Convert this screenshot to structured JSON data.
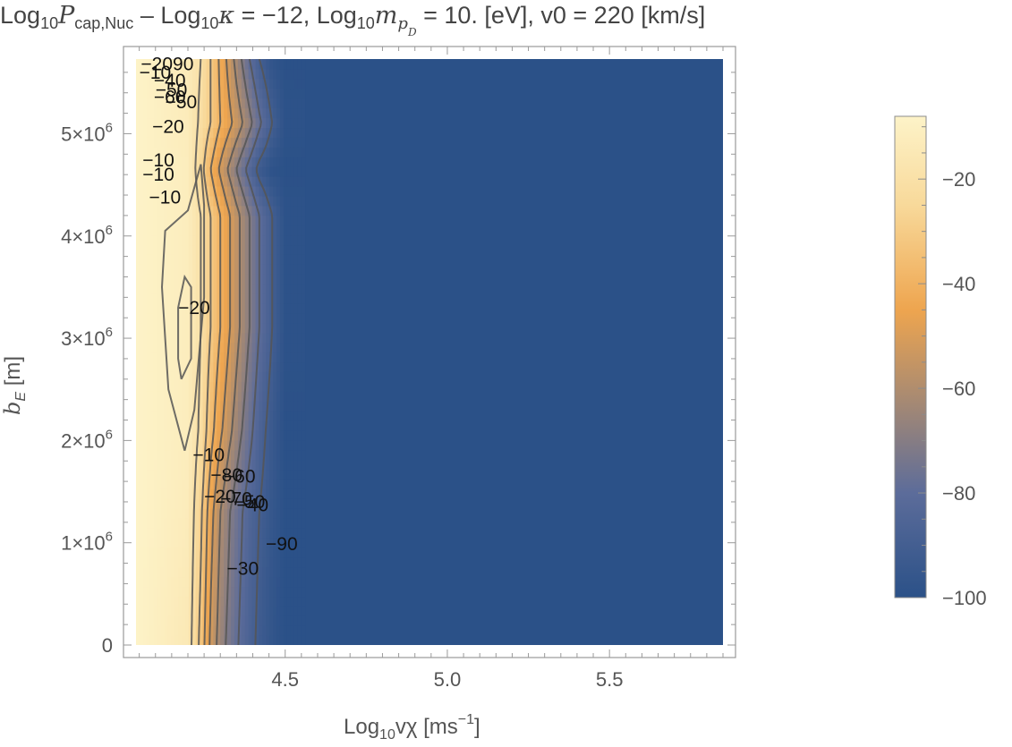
{
  "chart_data": {
    "type": "contour",
    "title": {
      "p1": "Log",
      "s1": "10",
      "p2": "P",
      "s2": "cap,Nuc",
      "p3": " – Log",
      "s3": "10",
      "p4": "κ",
      "p5": " = −12, Log",
      "s5": "10",
      "p6": "m",
      "s6a": "p",
      "s6b": "D",
      "p7": " = 10. [eV], v0 = 220 [km/s]"
    },
    "xlabel": {
      "pre": "Log",
      "sub": "10",
      "post": "vχ [ms",
      "sup": "−1",
      "end": "]"
    },
    "ylabel": {
      "main": "b",
      "sub": "E",
      "post": " [m]"
    },
    "xlim": [
      4.04,
      5.85
    ],
    "ylim": [
      0,
      5730000
    ],
    "x_ticks": [
      {
        "value": 4.5,
        "label": "4.5"
      },
      {
        "value": 5.0,
        "label": "5.0"
      },
      {
        "value": 5.5,
        "label": "5.5"
      }
    ],
    "y_ticks": [
      {
        "value": 0,
        "label": "0"
      },
      {
        "value": 1000000,
        "label": "1×10",
        "exp": "6"
      },
      {
        "value": 2000000,
        "label": "2×10",
        "exp": "6"
      },
      {
        "value": 3000000,
        "label": "3×10",
        "exp": "6"
      },
      {
        "value": 4000000,
        "label": "4×10",
        "exp": "6"
      },
      {
        "value": 5000000,
        "label": "5×10",
        "exp": "6"
      }
    ],
    "colorbar": {
      "range": [
        -100,
        -8
      ],
      "ticks": [
        {
          "value": -20,
          "label": "−20"
        },
        {
          "value": -40,
          "label": "−40"
        },
        {
          "value": -60,
          "label": "−60"
        },
        {
          "value": -80,
          "label": "−80"
        },
        {
          "value": -100,
          "label": "−100"
        }
      ],
      "stops": [
        {
          "value": -8,
          "color": "#fdf3c8"
        },
        {
          "value": -25,
          "color": "#f8d99a"
        },
        {
          "value": -45,
          "color": "#eea54f"
        },
        {
          "value": -62,
          "color": "#a88a72"
        },
        {
          "value": -80,
          "color": "#5c6c9a"
        },
        {
          "value": -100,
          "color": "#2b5188"
        }
      ]
    },
    "colors": {
      "background_field": "#2b5188",
      "contour_line": "#555555"
    },
    "contour_labels": [
      {
        "text": "−2090",
        "x": 4.055,
        "y": 5680000
      },
      {
        "text": "−10",
        "x": 4.05,
        "y": 5600000
      },
      {
        "text": "−40",
        "x": 4.095,
        "y": 5520000
      },
      {
        "text": "−50",
        "x": 4.1,
        "y": 5430000
      },
      {
        "text": "−60",
        "x": 4.095,
        "y": 5360000
      },
      {
        "text": "−50",
        "x": 4.13,
        "y": 5310000
      },
      {
        "text": "−20",
        "x": 4.09,
        "y": 5070000
      },
      {
        "text": "−10",
        "x": 4.06,
        "y": 4740000
      },
      {
        "text": "−10",
        "x": 4.06,
        "y": 4600000
      },
      {
        "text": "−10",
        "x": 4.08,
        "y": 4380000
      },
      {
        "text": "−20",
        "x": 4.17,
        "y": 3300000
      },
      {
        "text": "−10",
        "x": 4.215,
        "y": 1860000
      },
      {
        "text": "−80",
        "x": 4.27,
        "y": 1660000
      },
      {
        "text": "−60",
        "x": 4.31,
        "y": 1650000
      },
      {
        "text": "−20",
        "x": 4.25,
        "y": 1450000
      },
      {
        "text": "−70",
        "x": 4.3,
        "y": 1430000
      },
      {
        "text": "−50",
        "x": 4.34,
        "y": 1400000
      },
      {
        "text": "−40",
        "x": 4.35,
        "y": 1370000
      },
      {
        "text": "−90",
        "x": 4.44,
        "y": 990000
      },
      {
        "text": "−30",
        "x": 4.32,
        "y": 750000
      }
    ],
    "field": {
      "x": [
        4.04,
        4.2,
        4.24,
        4.27,
        4.3,
        4.33,
        4.36,
        4.39,
        4.42,
        4.46,
        4.5,
        5.85
      ],
      "rows": [
        {
          "y": 0,
          "v": [
            -8,
            -15,
            -33,
            -52,
            -65,
            -74,
            -81,
            -87,
            -92,
            -97,
            -100,
            -100
          ]
        },
        {
          "y": 1300000,
          "v": [
            -8,
            -13,
            -28,
            -46,
            -60,
            -70,
            -78,
            -85,
            -90,
            -96,
            -100,
            -100
          ]
        },
        {
          "y": 2100000,
          "v": [
            -8,
            -12,
            -22,
            -36,
            -48,
            -58,
            -68,
            -77,
            -86,
            -94,
            -100,
            -100
          ]
        },
        {
          "y": 3100000,
          "v": [
            -8,
            -12,
            -20,
            -30,
            -40,
            -50,
            -60,
            -70,
            -80,
            -90,
            -99,
            -100
          ]
        },
        {
          "y": 4200000,
          "v": [
            -8,
            -12,
            -20,
            -30,
            -40,
            -50,
            -60,
            -70,
            -80,
            -90,
            -99,
            -100
          ]
        },
        {
          "y": 4650000,
          "v": [
            -8,
            -12,
            -26,
            -40,
            -52,
            -63,
            -74,
            -84,
            -93,
            -99,
            -100,
            -100
          ]
        },
        {
          "y": 5100000,
          "v": [
            -8,
            -13,
            -22,
            -30,
            -40,
            -48,
            -57,
            -67,
            -78,
            -90,
            -99,
            -100
          ]
        },
        {
          "y": 5730000,
          "v": [
            -8,
            -14,
            -20,
            -30,
            -42,
            -55,
            -68,
            -80,
            -90,
            -98,
            -100,
            -100
          ]
        }
      ]
    }
  }
}
